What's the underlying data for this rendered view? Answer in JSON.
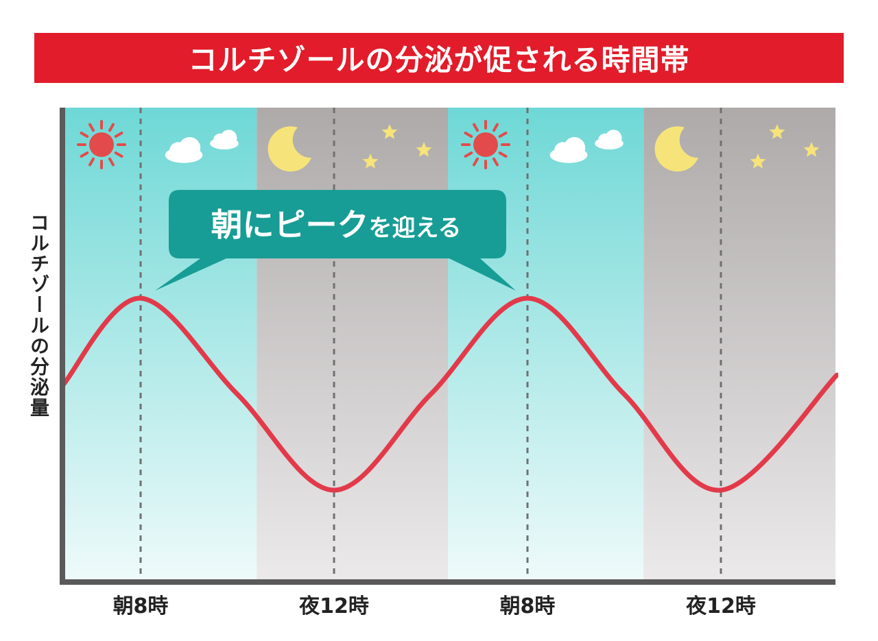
{
  "title": "コルチゾールの分泌が促される時間帯",
  "ylabel": "コルチゾールの分泌量",
  "annotation": {
    "text_main": "朝にピーク",
    "text_small": "を迎える"
  },
  "colors": {
    "title_bg": "#e21c2a",
    "day_top": "#6ed8d6",
    "day_bottom": "#eefafa",
    "night_top": "#aeaaaa",
    "night_bottom": "#ebe9ea",
    "curve": "#e23a4a",
    "bubble": "#179d95",
    "sun": "#e34b4b",
    "moon": "#f6e37a",
    "star": "#f6e37a",
    "cloud": "#ffffff"
  },
  "chart_data": {
    "type": "line",
    "title": "コルチゾールの分泌が促される時間帯",
    "ylabel": "コルチゾールの分泌量",
    "xlabel": "",
    "x_tick_labels": [
      "朝8時",
      "夜12時",
      "朝8時",
      "夜12時"
    ],
    "periods": [
      "day",
      "night",
      "day",
      "night"
    ],
    "period_icons": [
      "sun-icon",
      "cloud-icon",
      "moon-icon",
      "star-icon"
    ],
    "series": [
      {
        "x": [
          -0.4,
          0,
          0.5,
          1,
          1.5,
          2,
          2.5,
          3,
          3.6
        ],
        "values": [
          0.55,
          1.0,
          0.5,
          0.0,
          0.5,
          1.0,
          0.5,
          0.0,
          0.6
        ]
      }
    ],
    "ylim": [
      0,
      1
    ],
    "grid": false
  }
}
